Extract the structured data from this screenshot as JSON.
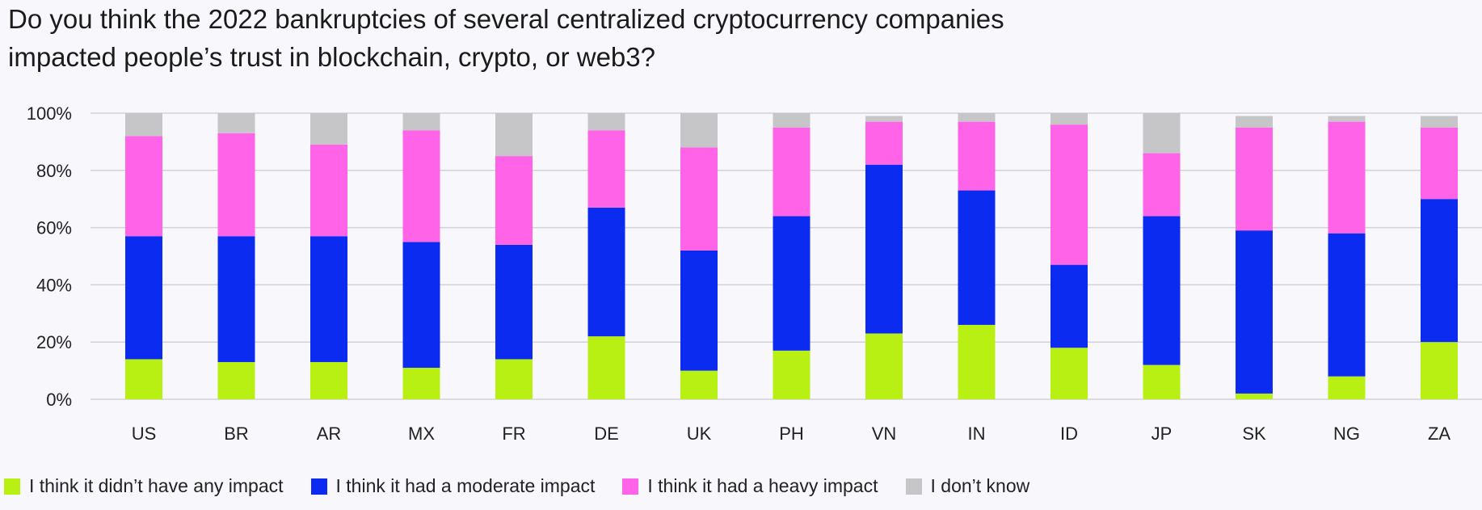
{
  "chart_data": {
    "type": "bar",
    "stacked": true,
    "title": "Do you think the 2022 bankruptcies of several centralized cryptocurrency companies impacted people’s trust in blockchain, crypto, or web3?",
    "categories": [
      "US",
      "BR",
      "AR",
      "MX",
      "FR",
      "DE",
      "UK",
      "PH",
      "VN",
      "IN",
      "ID",
      "JP",
      "SK",
      "NG",
      "ZA"
    ],
    "ylim": [
      0,
      100
    ],
    "yticks": [
      {
        "value": 0,
        "label": "0%"
      },
      {
        "value": 20,
        "label": "20%"
      },
      {
        "value": 40,
        "label": "40%"
      },
      {
        "value": 60,
        "label": "60%"
      },
      {
        "value": 80,
        "label": "80%"
      },
      {
        "value": 100,
        "label": "100%"
      }
    ],
    "xlabel": "",
    "ylabel": "",
    "grid": true,
    "legend_position": "bottom",
    "series": [
      {
        "name": "I think it didn’t have any impact",
        "color": "#b9f013",
        "values": [
          14,
          13,
          13,
          11,
          14,
          22,
          10,
          17,
          23,
          26,
          18,
          12,
          2,
          8,
          20
        ]
      },
      {
        "name": "I think it had a moderate impact",
        "color": "#0b2cf0",
        "values": [
          43,
          44,
          44,
          44,
          40,
          45,
          42,
          47,
          59,
          47,
          29,
          52,
          57,
          50,
          50
        ]
      },
      {
        "name": "I think it had a heavy impact",
        "color": "#ff63e8",
        "values": [
          35,
          36,
          32,
          39,
          31,
          27,
          36,
          31,
          15,
          24,
          49,
          22,
          36,
          39,
          25
        ]
      },
      {
        "name": "I don’t know",
        "color": "#c6c6c8",
        "values": [
          8,
          7,
          11,
          6,
          15,
          6,
          12,
          5,
          2,
          3,
          4,
          14,
          4,
          2,
          4
        ]
      }
    ]
  }
}
